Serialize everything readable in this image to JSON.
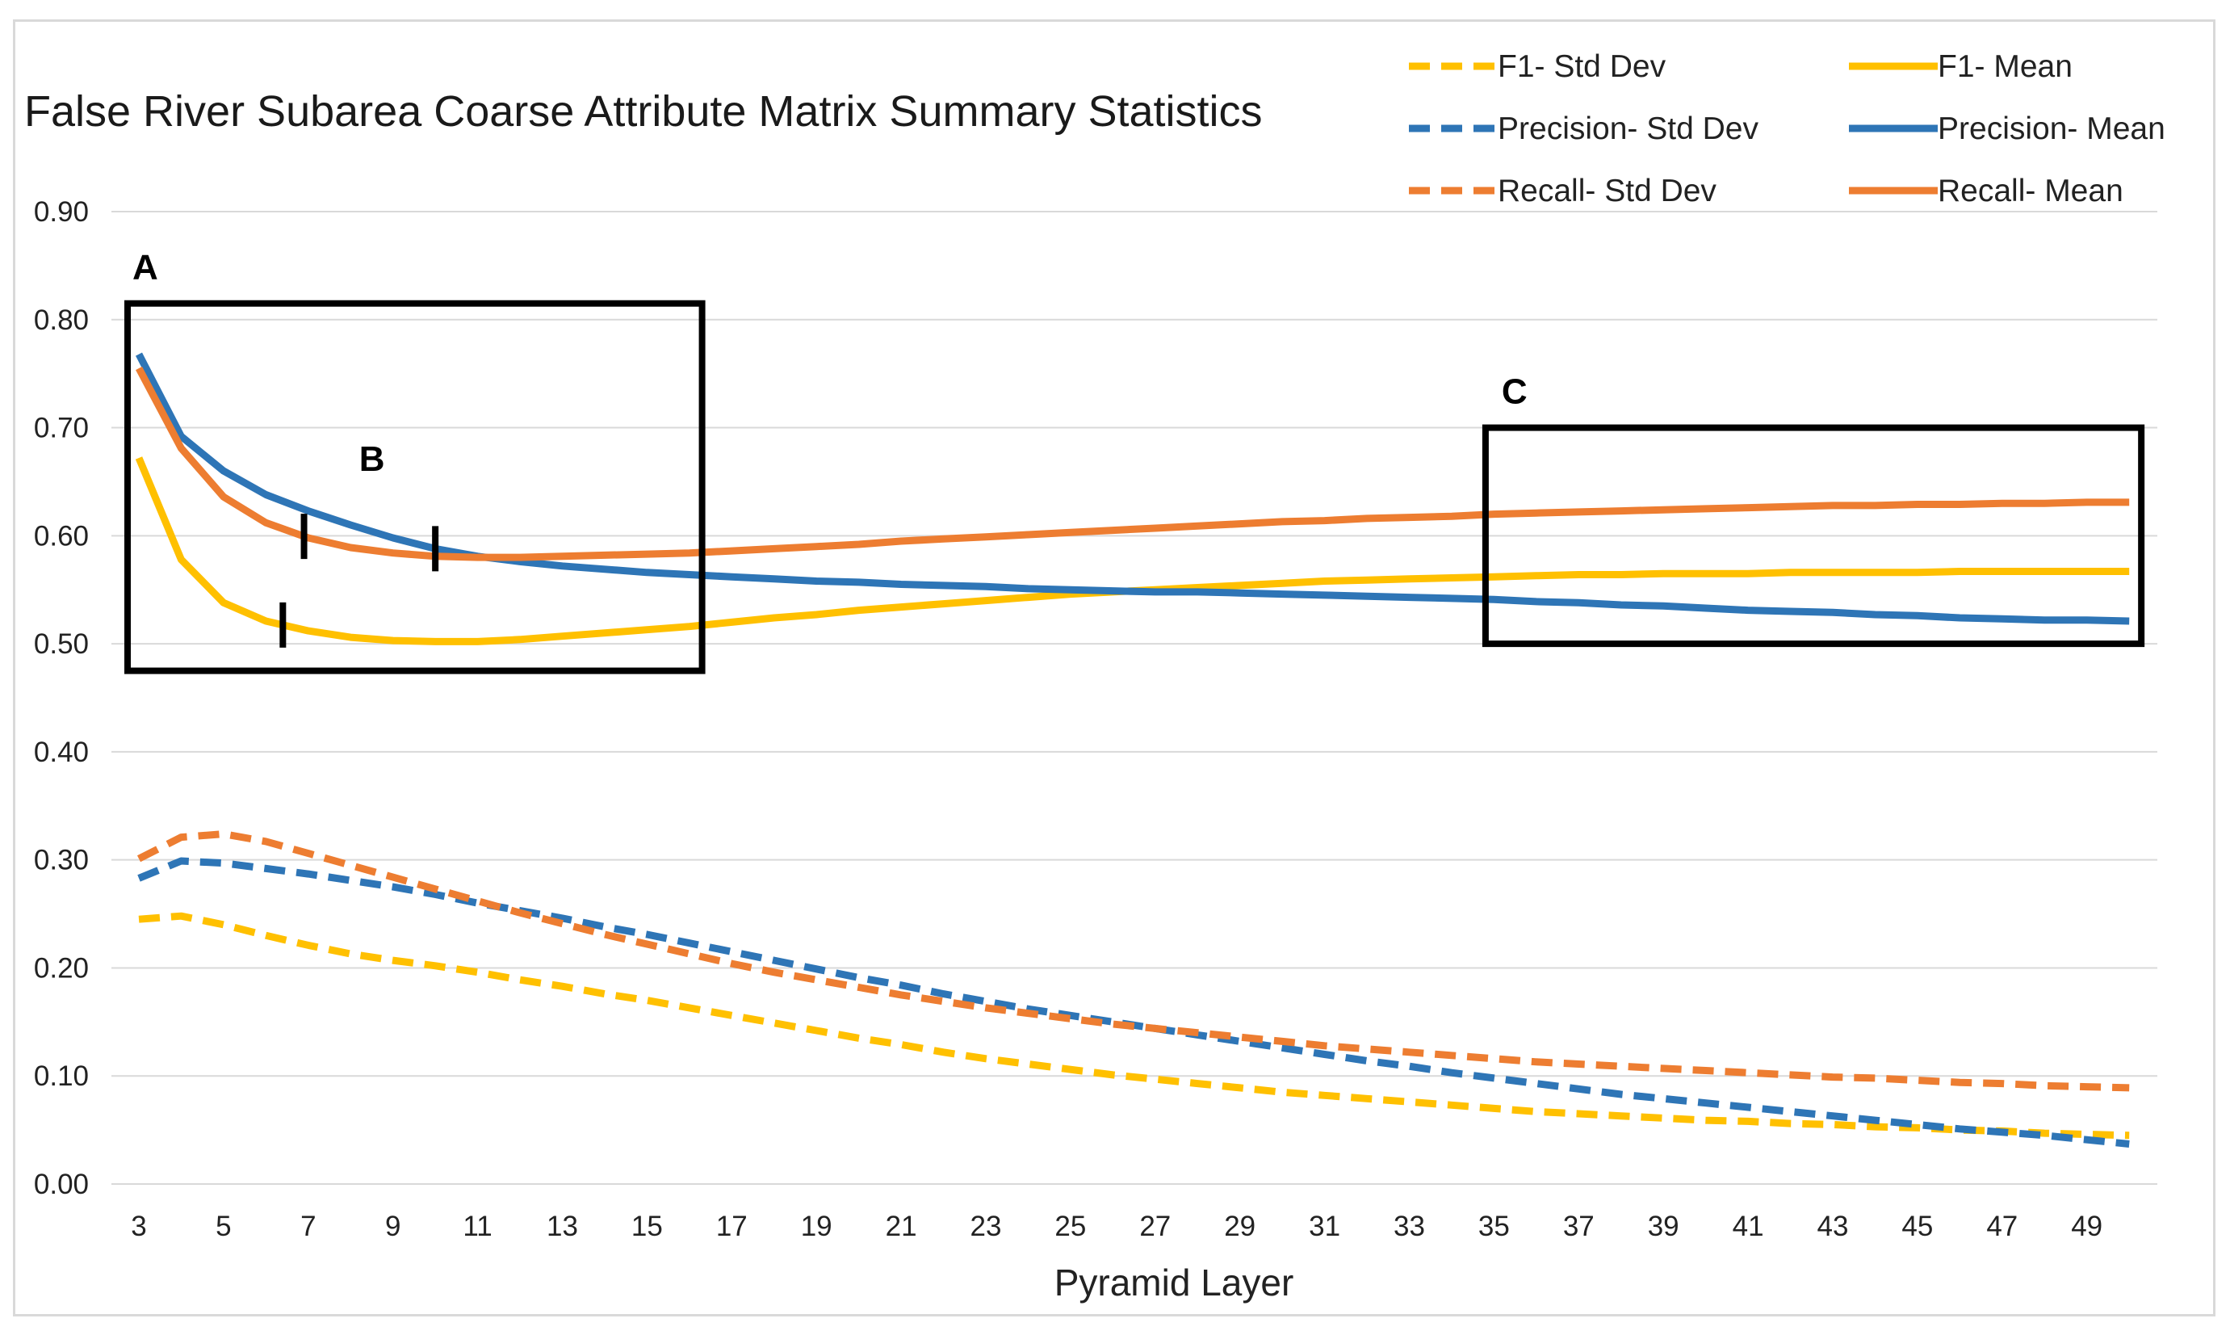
{
  "chart_data": {
    "type": "line",
    "title": "False River Subarea Coarse Attribute Matrix Summary Statistics",
    "xlabel": "Pyramid Layer",
    "ylabel": "",
    "x": [
      3,
      4,
      5,
      6,
      7,
      8,
      9,
      10,
      11,
      12,
      13,
      14,
      15,
      16,
      17,
      18,
      19,
      20,
      21,
      22,
      23,
      24,
      25,
      26,
      27,
      28,
      29,
      30,
      31,
      32,
      33,
      34,
      35,
      36,
      37,
      38,
      39,
      40,
      41,
      42,
      43,
      44,
      45,
      46,
      47,
      48,
      49,
      50
    ],
    "xticks": [
      "3",
      "5",
      "7",
      "9",
      "11",
      "13",
      "15",
      "17",
      "19",
      "21",
      "23",
      "25",
      "27",
      "29",
      "31",
      "33",
      "35",
      "37",
      "39",
      "41",
      "43",
      "45",
      "47",
      "49"
    ],
    "yticks": [
      "0.00",
      "0.10",
      "0.20",
      "0.30",
      "0.40",
      "0.50",
      "0.60",
      "0.70",
      "0.80",
      "0.90"
    ],
    "ylim": [
      0,
      0.9
    ],
    "grid": "horizontal",
    "legend_position": "top-right",
    "series": [
      {
        "name": "F1- Std Dev",
        "color": "#FFC000",
        "dash": true,
        "values": [
          0.245,
          0.248,
          0.24,
          0.23,
          0.221,
          0.213,
          0.207,
          0.202,
          0.196,
          0.189,
          0.183,
          0.176,
          0.17,
          0.163,
          0.156,
          0.149,
          0.142,
          0.135,
          0.129,
          0.122,
          0.116,
          0.111,
          0.106,
          0.101,
          0.097,
          0.093,
          0.089,
          0.085,
          0.082,
          0.079,
          0.076,
          0.073,
          0.07,
          0.067,
          0.065,
          0.063,
          0.061,
          0.059,
          0.058,
          0.056,
          0.055,
          0.053,
          0.052,
          0.05,
          0.049,
          0.047,
          0.046,
          0.045
        ]
      },
      {
        "name": "F1- Mean",
        "color": "#FFC000",
        "dash": false,
        "values": [
          0.672,
          0.578,
          0.538,
          0.521,
          0.512,
          0.506,
          0.503,
          0.502,
          0.502,
          0.504,
          0.507,
          0.51,
          0.513,
          0.516,
          0.52,
          0.524,
          0.527,
          0.531,
          0.534,
          0.537,
          0.54,
          0.543,
          0.546,
          0.548,
          0.55,
          0.552,
          0.554,
          0.556,
          0.558,
          0.559,
          0.56,
          0.561,
          0.562,
          0.563,
          0.564,
          0.564,
          0.565,
          0.565,
          0.565,
          0.566,
          0.566,
          0.566,
          0.566,
          0.567,
          0.567,
          0.567,
          0.567,
          0.567
        ]
      },
      {
        "name": "Precision- Std Dev",
        "color": "#2E75B6",
        "dash": true,
        "values": [
          0.283,
          0.299,
          0.297,
          0.292,
          0.287,
          0.281,
          0.275,
          0.268,
          0.26,
          0.253,
          0.246,
          0.238,
          0.231,
          0.223,
          0.215,
          0.207,
          0.199,
          0.191,
          0.184,
          0.176,
          0.169,
          0.162,
          0.156,
          0.15,
          0.144,
          0.138,
          0.132,
          0.126,
          0.12,
          0.114,
          0.109,
          0.103,
          0.098,
          0.093,
          0.088,
          0.083,
          0.079,
          0.075,
          0.071,
          0.067,
          0.063,
          0.059,
          0.055,
          0.051,
          0.048,
          0.045,
          0.041,
          0.037
        ]
      },
      {
        "name": "Precision- Mean",
        "color": "#2E75B6",
        "dash": false,
        "values": [
          0.768,
          0.692,
          0.66,
          0.638,
          0.623,
          0.61,
          0.598,
          0.588,
          0.581,
          0.576,
          0.572,
          0.569,
          0.566,
          0.564,
          0.562,
          0.56,
          0.558,
          0.557,
          0.555,
          0.554,
          0.553,
          0.551,
          0.55,
          0.549,
          0.548,
          0.548,
          0.547,
          0.546,
          0.545,
          0.544,
          0.543,
          0.542,
          0.541,
          0.539,
          0.538,
          0.536,
          0.535,
          0.533,
          0.531,
          0.53,
          0.529,
          0.527,
          0.526,
          0.524,
          0.523,
          0.522,
          0.522,
          0.521
        ]
      },
      {
        "name": "Recall- Std Dev",
        "color": "#ED7D31",
        "dash": true,
        "values": [
          0.301,
          0.321,
          0.324,
          0.317,
          0.306,
          0.295,
          0.284,
          0.273,
          0.262,
          0.251,
          0.241,
          0.231,
          0.222,
          0.213,
          0.204,
          0.196,
          0.189,
          0.182,
          0.175,
          0.169,
          0.163,
          0.158,
          0.153,
          0.148,
          0.144,
          0.14,
          0.136,
          0.132,
          0.128,
          0.125,
          0.122,
          0.119,
          0.116,
          0.113,
          0.111,
          0.109,
          0.107,
          0.105,
          0.103,
          0.101,
          0.099,
          0.098,
          0.096,
          0.094,
          0.093,
          0.091,
          0.09,
          0.089
        ]
      },
      {
        "name": "Recall- Mean",
        "color": "#ED7D31",
        "dash": false,
        "values": [
          0.755,
          0.681,
          0.636,
          0.612,
          0.598,
          0.589,
          0.584,
          0.581,
          0.58,
          0.58,
          0.581,
          0.582,
          0.583,
          0.584,
          0.586,
          0.588,
          0.59,
          0.592,
          0.595,
          0.597,
          0.599,
          0.601,
          0.603,
          0.605,
          0.607,
          0.609,
          0.611,
          0.613,
          0.614,
          0.616,
          0.617,
          0.618,
          0.62,
          0.621,
          0.622,
          0.623,
          0.624,
          0.625,
          0.626,
          0.627,
          0.628,
          0.628,
          0.629,
          0.629,
          0.63,
          0.63,
          0.631,
          0.631
        ]
      }
    ],
    "annotations": [
      {
        "label": "A",
        "box_x": [
          3,
          16.3
        ],
        "box_y": [
          0.475,
          0.815
        ]
      },
      {
        "label": "B",
        "markers": [
          {
            "series": "F1- Mean",
            "x": 6.4
          },
          {
            "series": "Recall- Mean",
            "x": 6.9
          },
          {
            "series": "Precision- Mean",
            "x": 10.0
          }
        ]
      },
      {
        "label": "C",
        "box_x": [
          34.8,
          50
        ],
        "box_y": [
          0.5,
          0.7
        ]
      }
    ]
  }
}
